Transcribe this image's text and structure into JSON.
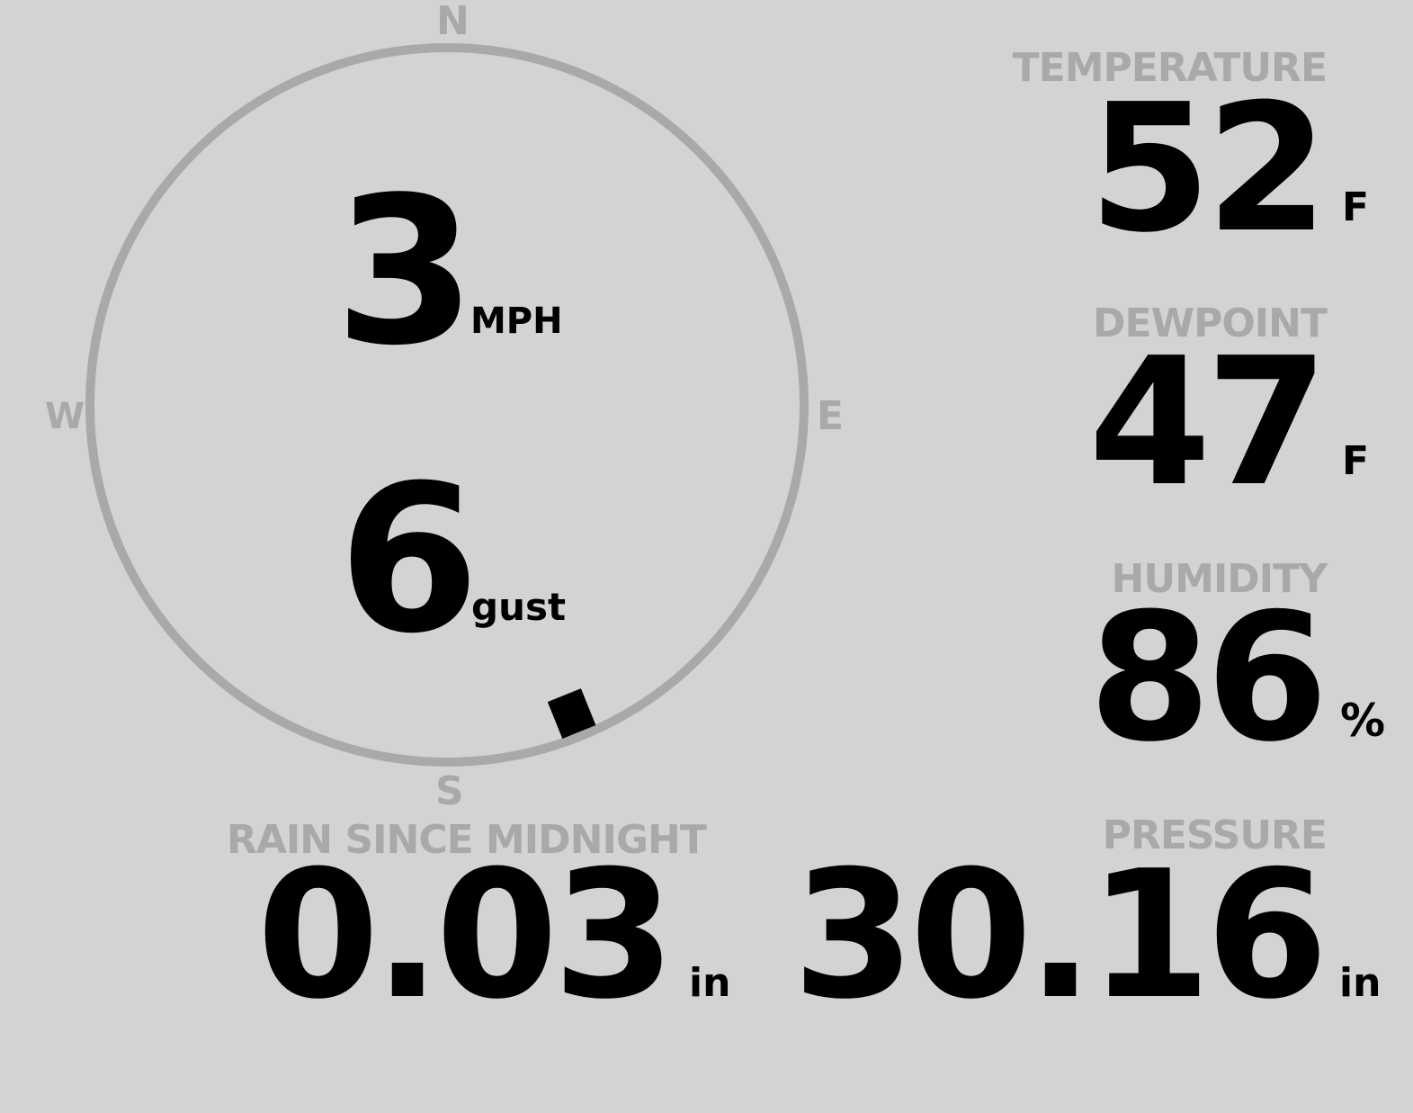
{
  "colors": {
    "background": "#d3d3d3",
    "label": "#a9a9a9",
    "value": "#000000"
  },
  "wind": {
    "compass": {
      "n": "N",
      "e": "E",
      "s": "S",
      "w": "W"
    },
    "speed": "3",
    "speed_unit": "MPH",
    "gust": "6",
    "gust_unit": "gust",
    "direction_deg": 158
  },
  "temperature": {
    "label": "TEMPERATURE",
    "value": "52",
    "unit": "F"
  },
  "dewpoint": {
    "label": "DEWPOINT",
    "value": "47",
    "unit": "F"
  },
  "humidity": {
    "label": "HUMIDITY",
    "value": "86",
    "unit": "%"
  },
  "rain": {
    "label": "RAIN SINCE MIDNIGHT",
    "value": "0.03",
    "unit": "in"
  },
  "pressure": {
    "label": "PRESSURE",
    "value": "30.16",
    "unit": "in"
  }
}
